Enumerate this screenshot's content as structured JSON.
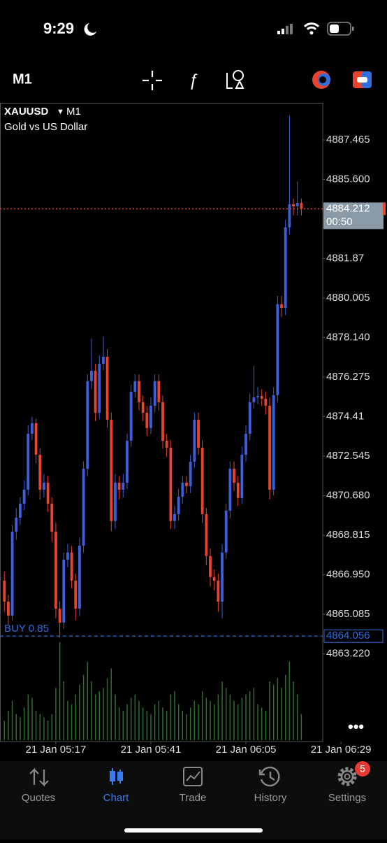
{
  "status_bar": {
    "time": "9:29"
  },
  "toolbar": {
    "timeframe": "M1"
  },
  "tab_bar": {
    "tabs": [
      "Quotes",
      "Chart",
      "Trade",
      "History",
      "Settings"
    ],
    "active": 1,
    "badge": "5"
  },
  "chart_data": {
    "type": "candlestick",
    "symbol": "XAUUSD",
    "timeframe": "M1",
    "subtitle": "Gold vs US Dollar",
    "up_color": "#3d5fdc",
    "down_color": "#e8432c",
    "volume_color": "#2f6e2f",
    "x": [
      304,
      305,
      306,
      307,
      308,
      309,
      310,
      311,
      312,
      313,
      314,
      315,
      316,
      317,
      318,
      319,
      320,
      321,
      322,
      323,
      324,
      325,
      326,
      327,
      328,
      329,
      330,
      331,
      332,
      333,
      334,
      335,
      336,
      337,
      338,
      339,
      340,
      341,
      342,
      343,
      344,
      345,
      346,
      347,
      348,
      349,
      350,
      351,
      352,
      353,
      354,
      355,
      356,
      357,
      358,
      359,
      360,
      361,
      362,
      363,
      364,
      365,
      366,
      367,
      368,
      369,
      370,
      371,
      372,
      373,
      374,
      375,
      376,
      377,
      378,
      379
    ],
    "open": [
      4866.67,
      4865.68,
      4865.02,
      4868.98,
      4869.64,
      4870.3,
      4870.96,
      4873.6,
      4874.1,
      4872.61,
      4870.96,
      4871.29,
      4870.3,
      4868.98,
      4865.35,
      4864.69,
      4867.66,
      4868.0,
      4866.67,
      4865.35,
      4868.32,
      4871.95,
      4876.08,
      4876.57,
      4874.59,
      4876.9,
      4877.23,
      4874.26,
      4869.48,
      4871.29,
      4870.96,
      4871.29,
      4873.27,
      4875.58,
      4876.08,
      4875.09,
      4874.59,
      4873.87,
      4874.92,
      4876.08,
      4875.09,
      4873.27,
      4872.94,
      4869.48,
      4869.81,
      4870.63,
      4871.29,
      4871.13,
      4872.28,
      4874.26,
      4872.94,
      4869.81,
      4867.83,
      4866.84,
      4866.67,
      4865.68,
      4868.0,
      4869.97,
      4871.95,
      4871.29,
      4870.57,
      4872.61,
      4873.6,
      4875.09,
      4875.32,
      4875.38,
      4875.25,
      4874.92,
      4870.96,
      4875.42,
      4879.71,
      4879.54,
      4883.34,
      4884.43,
      4884.33,
      4884.49
    ],
    "high": [
      4867.1,
      4866.0,
      4869.3,
      4870.1,
      4870.6,
      4871.4,
      4874.0,
      4874.4,
      4874.3,
      4872.9,
      4871.7,
      4871.6,
      4870.6,
      4869.4,
      4865.7,
      4868.0,
      4868.4,
      4868.3,
      4867.0,
      4868.7,
      4872.3,
      4876.4,
      4878.1,
      4876.9,
      4877.3,
      4878.2,
      4877.6,
      4874.6,
      4871.7,
      4871.6,
      4871.7,
      4873.6,
      4875.9,
      4876.4,
      4876.4,
      4875.4,
      4874.9,
      4875.3,
      4876.4,
      4876.4,
      4875.4,
      4873.6,
      4873.3,
      4870.2,
      4871.0,
      4871.6,
      4871.6,
      4872.6,
      4874.6,
      4874.6,
      4873.3,
      4870.1,
      4868.2,
      4867.2,
      4867.0,
      4868.4,
      4870.3,
      4872.3,
      4872.3,
      4871.6,
      4873.0,
      4874.0,
      4875.5,
      4876.8,
      4875.8,
      4875.7,
      4875.6,
      4875.3,
      4875.8,
      4880.1,
      4880.1,
      4883.7,
      4888.6,
      4884.7,
      4885.5,
      4884.7
    ],
    "low": [
      4865.2,
      4864.6,
      4864.8,
      4868.6,
      4869.3,
      4870.0,
      4870.7,
      4873.3,
      4872.2,
      4870.5,
      4870.6,
      4869.9,
      4868.5,
      4864.9,
      4864.0,
      4864.4,
      4867.3,
      4866.3,
      4864.8,
      4865.0,
      4868.0,
      4871.6,
      4875.7,
      4874.2,
      4874.3,
      4876.6,
      4873.9,
      4869.0,
      4869.1,
      4870.5,
      4870.6,
      4871.0,
      4873.0,
      4875.3,
      4874.7,
      4874.2,
      4873.5,
      4873.6,
      4874.6,
      4874.7,
      4872.9,
      4872.5,
      4869.1,
      4869.1,
      4869.5,
      4870.3,
      4870.8,
      4870.8,
      4872.0,
      4872.6,
      4869.4,
      4867.4,
      4866.4,
      4866.2,
      4865.2,
      4864.9,
      4867.7,
      4869.6,
      4870.9,
      4870.2,
      4870.3,
      4872.3,
      4873.3,
      4874.8,
      4875.0,
      4874.9,
      4874.5,
      4870.5,
      4870.7,
      4875.1,
      4879.1,
      4879.2,
      4883.0,
      4883.9,
      4883.9,
      4883.9
    ],
    "close": [
      4865.68,
      4865.02,
      4868.98,
      4869.64,
      4870.3,
      4870.96,
      4873.6,
      4874.1,
      4872.61,
      4870.96,
      4871.29,
      4870.3,
      4868.98,
      4865.35,
      4864.69,
      4867.66,
      4868.0,
      4866.67,
      4865.35,
      4868.32,
      4871.95,
      4876.08,
      4876.57,
      4874.59,
      4876.9,
      4877.23,
      4874.26,
      4869.48,
      4871.29,
      4870.96,
      4871.29,
      4873.27,
      4875.58,
      4876.08,
      4875.09,
      4874.59,
      4873.87,
      4874.92,
      4876.08,
      4875.09,
      4873.27,
      4872.94,
      4869.48,
      4869.81,
      4870.63,
      4871.29,
      4871.13,
      4872.28,
      4874.26,
      4872.94,
      4869.81,
      4867.83,
      4866.84,
      4866.67,
      4865.68,
      4868.0,
      4869.97,
      4871.95,
      4871.29,
      4870.57,
      4872.61,
      4873.6,
      4875.09,
      4875.32,
      4875.38,
      4875.25,
      4874.92,
      4870.96,
      4875.42,
      4879.71,
      4879.54,
      4883.34,
      4884.43,
      4884.33,
      4884.49,
      4884.212
    ],
    "volume": [
      30,
      45,
      60,
      40,
      35,
      50,
      70,
      65,
      45,
      40,
      35,
      30,
      40,
      80,
      150,
      90,
      60,
      55,
      70,
      85,
      100,
      120,
      90,
      70,
      75,
      80,
      95,
      110,
      70,
      50,
      45,
      55,
      65,
      70,
      60,
      50,
      45,
      40,
      55,
      60,
      50,
      45,
      70,
      75,
      55,
      45,
      40,
      50,
      60,
      55,
      75,
      65,
      60,
      55,
      70,
      90,
      80,
      70,
      60,
      55,
      65,
      70,
      75,
      80,
      55,
      50,
      45,
      90,
      85,
      95,
      80,
      100,
      120,
      90,
      70,
      40
    ],
    "volume_lim": [
      0,
      150
    ],
    "xlim": [
      302.9,
      384.4
    ],
    "ylim": [
      4859.08,
      4889.21
    ],
    "xticks": [
      {
        "value": 317,
        "label": "21 Jan 05:17"
      },
      {
        "value": 341,
        "label": "21 Jan 05:41"
      },
      {
        "value": 365,
        "label": "21 Jan 06:05"
      },
      {
        "value": 389,
        "label": "21 Jan 06:29"
      }
    ],
    "yticks": [
      4887.465,
      {
        "value": 4885.6,
        "label": "4885.600"
      },
      4881.87,
      4880.005,
      {
        "value": 4878.14,
        "label": "4878.140"
      },
      4876.275,
      4874.41,
      4872.545,
      {
        "value": 4870.68,
        "label": "4870.680"
      },
      4868.815,
      {
        "value": 4866.95,
        "label": "4866.950"
      },
      4865.085,
      {
        "value": 4863.22,
        "label": "4863.220"
      }
    ],
    "bid": 4884.212,
    "bid_color": "#e8432c",
    "bid_timer": "00:50",
    "position": {
      "label": "BUY 0.85",
      "price": 4864.056,
      "color": "#2f6fe0"
    }
  }
}
